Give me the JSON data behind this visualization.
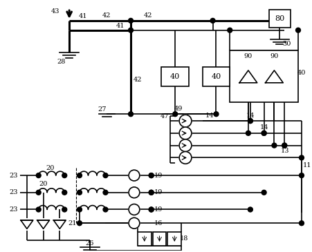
{
  "bg_color": "#ffffff",
  "line_color": "#000000",
  "lw": 1.2,
  "tlw": 2.2,
  "fig_width": 4.51,
  "fig_height": 3.65,
  "dpi": 100
}
